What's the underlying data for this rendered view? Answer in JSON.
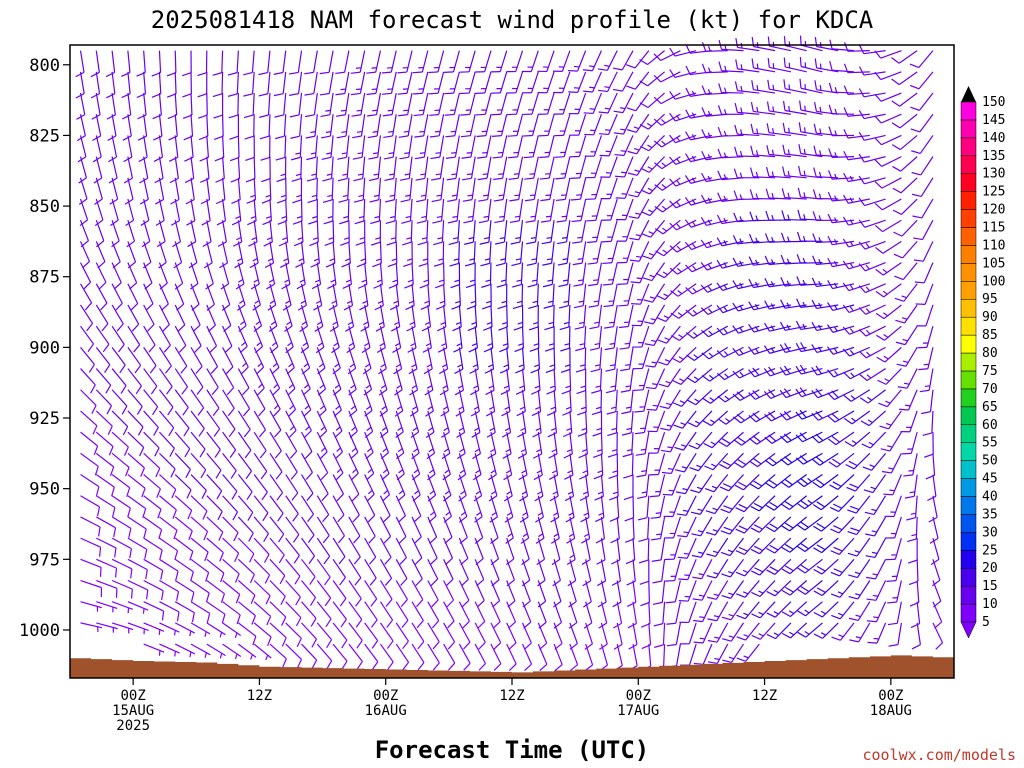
{
  "chart_data": {
    "type": "wind-profile",
    "title": "2025081418 NAM forecast wind profile (kt) for KDCA",
    "xlabel": "Forecast Time (UTC)",
    "ylabel": "",
    "y_levels_hPa": [
      1000,
      975,
      950,
      925,
      900,
      875,
      850,
      825,
      800
    ],
    "ylim_hPa": [
      1017,
      793
    ],
    "x_range_hours_from_start": [
      0,
      84
    ],
    "x_ticks": [
      {
        "hour": 6,
        "lines": [
          "00Z",
          "15AUG",
          "2025"
        ]
      },
      {
        "hour": 18,
        "lines": [
          "12Z"
        ]
      },
      {
        "hour": 30,
        "lines": [
          "00Z",
          "16AUG"
        ]
      },
      {
        "hour": 42,
        "lines": [
          "12Z"
        ]
      },
      {
        "hour": 54,
        "lines": [
          "00Z",
          "17AUG"
        ]
      },
      {
        "hour": 66,
        "lines": [
          "12Z"
        ]
      },
      {
        "hour": 78,
        "lines": [
          "00Z",
          "18AUG"
        ]
      }
    ],
    "grid": false,
    "wind_units": "kt",
    "colorbar": {
      "placement": "right",
      "ticks": [
        5,
        10,
        15,
        20,
        25,
        30,
        35,
        40,
        45,
        50,
        55,
        60,
        65,
        70,
        75,
        80,
        85,
        90,
        95,
        100,
        105,
        110,
        115,
        120,
        125,
        130,
        135,
        140,
        145,
        150
      ],
      "colors": [
        "#7f00ff",
        "#6a00f0",
        "#4800ee",
        "#2200f0",
        "#0030f5",
        "#0055ee",
        "#0077ea",
        "#0099e6",
        "#00c0cc",
        "#00d8a8",
        "#00d080",
        "#00c850",
        "#22d020",
        "#66e000",
        "#aaee00",
        "#ffff00",
        "#ffe000",
        "#ffc000",
        "#ffa000",
        "#ff9000",
        "#ff8000",
        "#ff6000",
        "#ff4000",
        "#ff2000",
        "#ff0020",
        "#ff0050",
        "#ff0080",
        "#ff00b0",
        "#ff00e0",
        "#ff00ff"
      ]
    },
    "terrain_color": "#a0522d",
    "surface_pressure_series": {
      "hours": [
        0,
        6,
        12,
        18,
        24,
        30,
        36,
        42,
        48,
        54,
        60,
        66,
        72,
        78,
        84
      ],
      "hPa": [
        1005,
        1006,
        1006.5,
        1008,
        1008.5,
        1009,
        1009.5,
        1010,
        1009,
        1008,
        1007,
        1006,
        1005,
        1004,
        1005
      ]
    },
    "wind_series": [
      {
        "name": "",
        "hours": [
          0,
          12,
          24,
          36,
          48,
          54,
          60,
          66,
          72,
          78,
          84
        ],
        "level_hPa": 1000,
        "speed_kt": [
          7,
          7,
          8,
          8,
          10,
          8,
          12,
          14,
          16,
          12,
          8
        ],
        "dir_deg": [
          100,
          120,
          140,
          150,
          160,
          170,
          200,
          220,
          230,
          200,
          130
        ]
      },
      {
        "name": "",
        "hours": [
          0,
          12,
          24,
          36,
          48,
          54,
          60,
          66,
          72,
          78,
          84
        ],
        "level_hPa": 950,
        "speed_kt": [
          9,
          10,
          12,
          13,
          14,
          12,
          16,
          20,
          24,
          16,
          10
        ],
        "dir_deg": [
          120,
          135,
          150,
          160,
          170,
          180,
          210,
          225,
          235,
          210,
          150
        ]
      },
      {
        "name": "",
        "hours": [
          0,
          12,
          24,
          36,
          48,
          54,
          60,
          66,
          72,
          78,
          84
        ],
        "level_hPa": 900,
        "speed_kt": [
          10,
          12,
          14,
          15,
          15,
          13,
          15,
          17,
          18,
          14,
          12
        ],
        "dir_deg": [
          140,
          150,
          160,
          170,
          180,
          190,
          230,
          250,
          260,
          240,
          170
        ]
      },
      {
        "name": "",
        "hours": [
          0,
          12,
          24,
          36,
          48,
          54,
          60,
          66,
          72,
          78,
          84
        ],
        "level_hPa": 850,
        "speed_kt": [
          10,
          12,
          14,
          15,
          15,
          14,
          14,
          15,
          15,
          12,
          12
        ],
        "dir_deg": [
          160,
          170,
          180,
          185,
          190,
          200,
          250,
          270,
          275,
          250,
          190
        ]
      },
      {
        "name": "",
        "hours": [
          0,
          12,
          24,
          36,
          48,
          54,
          60,
          66,
          72,
          78,
          84
        ],
        "level_hPa": 800,
        "speed_kt": [
          10,
          10,
          12,
          14,
          14,
          12,
          12,
          14,
          14,
          10,
          12
        ],
        "dir_deg": [
          170,
          180,
          190,
          195,
          200,
          210,
          260,
          280,
          285,
          260,
          200
        ]
      }
    ]
  },
  "credit": "coolwx.com/models"
}
